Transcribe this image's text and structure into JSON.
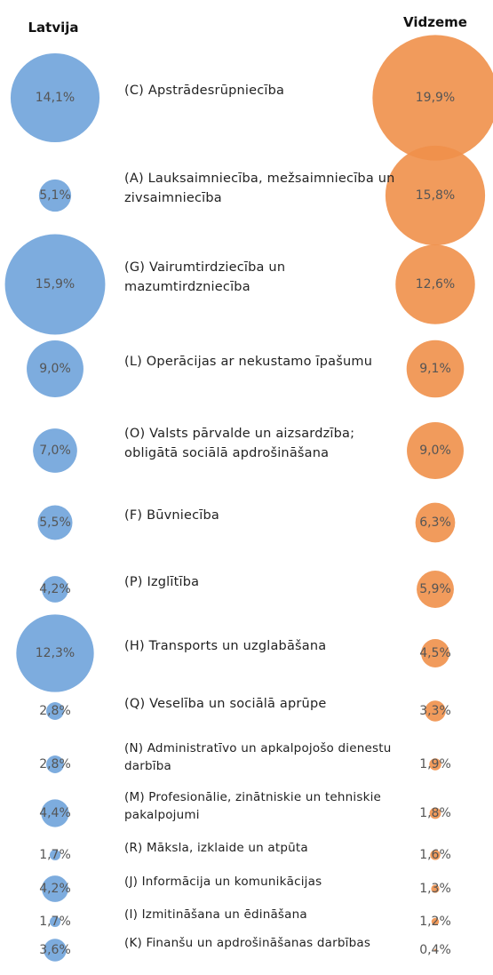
{
  "chart_data": {
    "type": "bubble",
    "categories": [
      "(C) Apstrādesrūpniecība",
      "(A) Lauksaimniecība, mežsaimniecība un zivsaimniecība",
      "(G) Vairumtirdziecība un mazumtirdzniecība",
      "(L) Operācijas ar nekustamo īpašumu",
      "(O) Valsts pārvalde un aizsardzība; obligātā sociālā apdrošināšana",
      "(F) Būvniecība",
      "(P) Izglītība",
      "(H) Transports un uzglabāšana",
      "(Q) Veselība un sociālā aprūpe",
      "(N) Administratīvo un apkalpojošo dienestu darbība",
      "(M) Profesionālie, zinātniskie un tehniskie pakalpojumi",
      "(R) Māksla, izklaide un atpūta",
      "(J) Informācija un komunikācijas",
      "(I) Izmitināšana un ēdināšana",
      "(K) Finanšu un apdrošināšanas darbības"
    ],
    "series": [
      {
        "name": "Latvija",
        "color": "#6fa3da",
        "values": [
          14.1,
          5.1,
          15.9,
          9.0,
          7.0,
          5.5,
          4.2,
          12.3,
          2.8,
          2.8,
          4.4,
          1.7,
          4.2,
          1.7,
          3.6
        ],
        "value_labels": [
          "14,1%",
          "5,1%",
          "15,9%",
          "9,0%",
          "7,0%",
          "5,5%",
          "4,2%",
          "12,3%",
          "2,8%",
          "2,8%",
          "4,4%",
          "1,7%",
          "4,2%",
          "1,7%",
          "3,6%"
        ]
      },
      {
        "name": "Vidzeme",
        "color": "#f0904a",
        "values": [
          19.9,
          15.8,
          12.6,
          9.1,
          9.0,
          6.3,
          5.9,
          4.5,
          3.3,
          1.9,
          1.8,
          1.6,
          1.3,
          1.2,
          0.4
        ],
        "value_labels": [
          "19,9%",
          "15,8%",
          "12,6%",
          "9,1%",
          "9,0%",
          "6,3%",
          "5,9%",
          "4,5%",
          "3,3%",
          "1,9%",
          "1,8%",
          "1,6%",
          "1,3%",
          "1,2%",
          "0,4%"
        ]
      }
    ]
  }
}
